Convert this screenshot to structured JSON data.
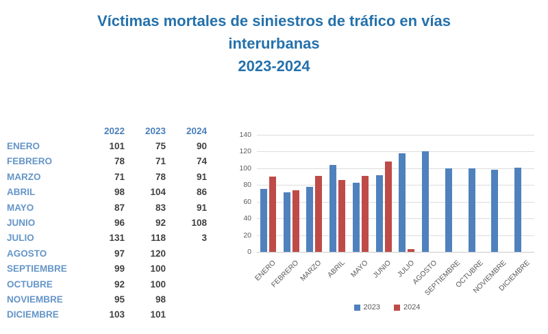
{
  "title": {
    "line1": "Víctimas mortales de siniestros de tráfico en vías",
    "line2": "interurbanas",
    "line3": "2023-2024"
  },
  "table": {
    "year_headers": [
      "2022",
      "2023",
      "2024"
    ],
    "rows": [
      {
        "month": "ENERO",
        "values": [
          "101",
          "75",
          "90"
        ]
      },
      {
        "month": "FEBRERO",
        "values": [
          "78",
          "71",
          "74"
        ]
      },
      {
        "month": "MARZO",
        "values": [
          "71",
          "78",
          "91"
        ]
      },
      {
        "month": "ABRIL",
        "values": [
          "98",
          "104",
          "86"
        ]
      },
      {
        "month": "MAYO",
        "values": [
          "87",
          "83",
          "91"
        ]
      },
      {
        "month": "JUNIO",
        "values": [
          "96",
          "92",
          "108"
        ]
      },
      {
        "month": "JULIO",
        "values": [
          "131",
          "118",
          "3"
        ]
      },
      {
        "month": "AGOSTO",
        "values": [
          "97",
          "120",
          ""
        ]
      },
      {
        "month": "SEPTIEMBRE",
        "values": [
          "99",
          "100",
          ""
        ]
      },
      {
        "month": "OCTUBRE",
        "values": [
          "92",
          "100",
          ""
        ]
      },
      {
        "month": "NOVIEMBRE",
        "values": [
          "95",
          "98",
          ""
        ]
      },
      {
        "month": "DICIEMBRE",
        "values": [
          "103",
          "101",
          ""
        ]
      }
    ]
  },
  "chart_data": {
    "type": "bar",
    "title": "",
    "categories": [
      "ENERO",
      "FEBRERO",
      "MARZO",
      "ABRIL",
      "MAYO",
      "JUNIO",
      "JULIO",
      "AGOSTO",
      "SEPTIEMBRE",
      "OCTUBRE",
      "NOVIEMBRE",
      "DICIEMBRE"
    ],
    "series": [
      {
        "name": "2023",
        "color": "#4F81BD",
        "values": [
          75,
          71,
          78,
          104,
          83,
          92,
          118,
          120,
          100,
          100,
          98,
          101
        ]
      },
      {
        "name": "2024",
        "color": "#BE4B48",
        "values": [
          90,
          74,
          91,
          86,
          91,
          108,
          3,
          null,
          null,
          null,
          null,
          null
        ]
      }
    ],
    "xlabel": "",
    "ylabel": "",
    "ylim": [
      0,
      140
    ],
    "ytick_step": 20,
    "grid": true,
    "legend_position": "bottom"
  },
  "colors": {
    "title_text": "#2471ab",
    "month_label": "#6495c8",
    "year_header": "#4a7ebb",
    "cell_value": "#3f3f3f",
    "axis_text": "#595959",
    "gridline": "#dcdcdc",
    "series_2023": "#4F81BD",
    "series_2024": "#BE4B48"
  }
}
